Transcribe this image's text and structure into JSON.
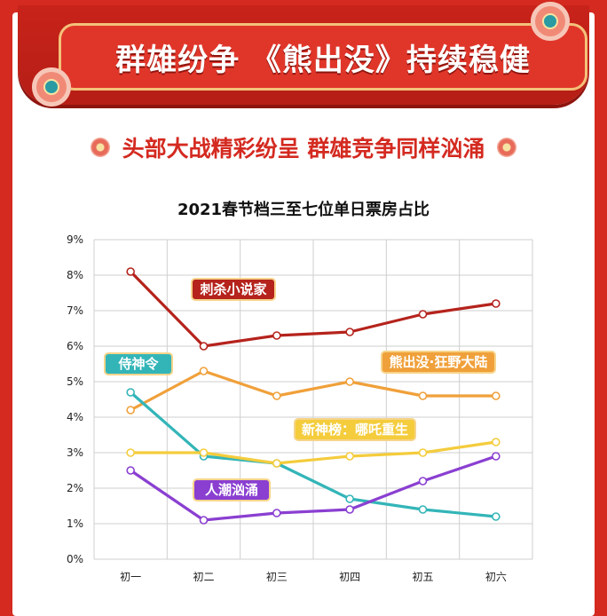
{
  "banner": {
    "title": "群雄纷争 《熊出没》持续稳健",
    "subtitle": "头部大战精彩纷呈 群雄竞争同样汹涌"
  },
  "colors": {
    "background": "#d42a20",
    "accent": "#f3c27a"
  },
  "chart_data": {
    "type": "line",
    "title": "2021春节档三至七位单日票房占比",
    "categories": [
      "初一",
      "初二",
      "初三",
      "初四",
      "初五",
      "初六"
    ],
    "y_ticks": [
      "0%",
      "1%",
      "2%",
      "3%",
      "4%",
      "5%",
      "6%",
      "7%",
      "8%",
      "9%"
    ],
    "ylim": [
      0,
      9
    ],
    "grid": true,
    "series": [
      {
        "name": "刺杀小说家",
        "color": "#b5231c",
        "values": [
          8.1,
          6.0,
          6.3,
          6.4,
          6.9,
          7.2
        ]
      },
      {
        "name": "熊出没·狂野大陆",
        "color": "#f0a03a",
        "values": [
          4.2,
          5.3,
          4.6,
          5.0,
          4.6,
          4.6
        ]
      },
      {
        "name": "侍神令",
        "color": "#33b5b8",
        "values": [
          4.7,
          2.9,
          2.7,
          1.7,
          1.4,
          1.2
        ]
      },
      {
        "name": "新神榜：哪吒重生",
        "color": "#f4cc3c",
        "values": [
          3.0,
          3.0,
          2.7,
          2.9,
          3.0,
          3.3
        ]
      },
      {
        "name": "人潮汹涌",
        "color": "#8a3fd1",
        "values": [
          2.5,
          1.1,
          1.3,
          1.4,
          2.2,
          2.9
        ]
      }
    ]
  }
}
